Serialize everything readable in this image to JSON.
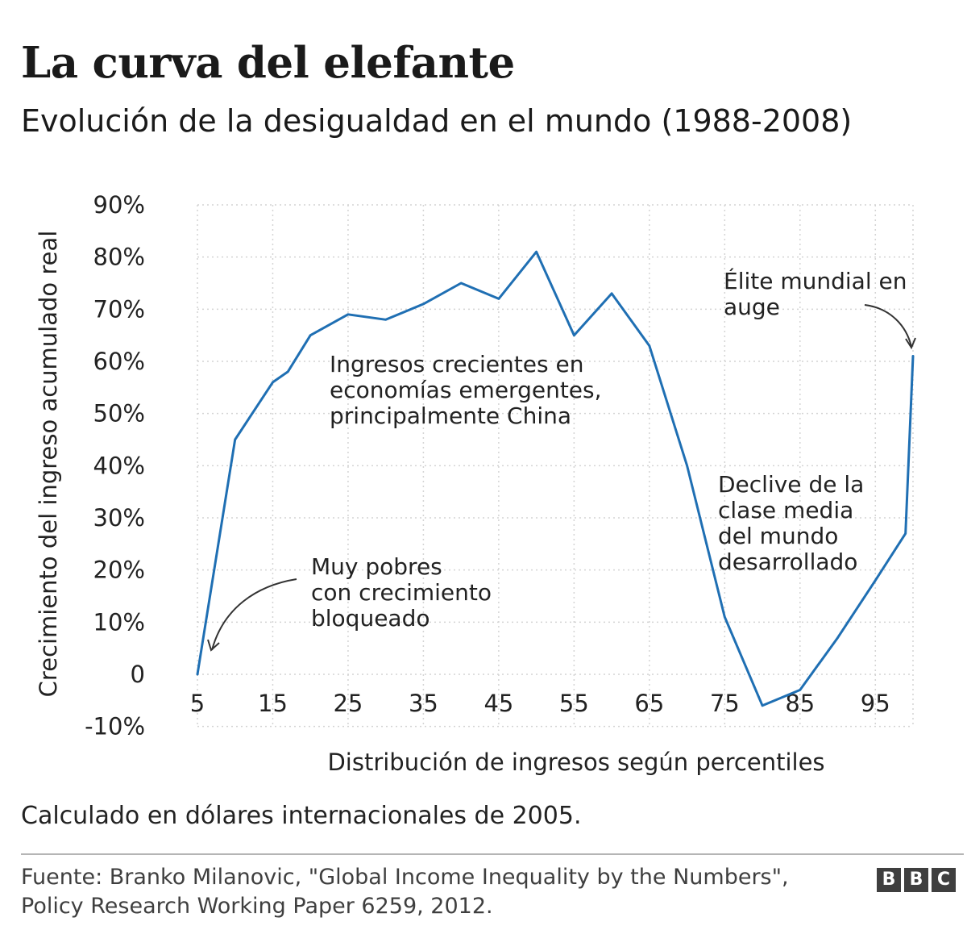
{
  "header": {
    "title": "La curva del elefante",
    "subtitle": "Evolución de la desigualdad en el mundo (1988-2008)"
  },
  "chart_data": {
    "type": "line",
    "xlabel": "Distribución de ingresos según percentiles",
    "ylabel": "Crecimiento del ingreso acumulado real",
    "xlim": [
      5,
      100
    ],
    "ylim": [
      -10,
      90
    ],
    "x_ticks": [
      5,
      15,
      25,
      35,
      45,
      55,
      65,
      75,
      85,
      95
    ],
    "x_tick_labels": [
      "5",
      "15",
      "25",
      "35",
      "45",
      "55",
      "65",
      "75",
      "85",
      "95"
    ],
    "y_ticks": [
      90,
      80,
      70,
      60,
      50,
      40,
      30,
      20,
      10,
      0,
      -10
    ],
    "y_tick_labels": [
      "90%",
      "80%",
      "70%",
      "60%",
      "50%",
      "40%",
      "30%",
      "20%",
      "10%",
      "0",
      "-10%"
    ],
    "grid": true,
    "series_color": "#1f6fb3",
    "series": [
      {
        "x": [
          5,
          10,
          15,
          17,
          20,
          25,
          30,
          35,
          40,
          45,
          50,
          55,
          60,
          65,
          70,
          75,
          80,
          85,
          90,
          95,
          99,
          100
        ],
        "values": [
          0,
          45,
          56,
          58,
          65,
          69,
          68,
          71,
          75,
          72,
          81,
          65,
          73,
          63,
          40,
          11,
          -6,
          -3,
          7,
          18,
          27,
          61
        ]
      }
    ],
    "annotations": [
      {
        "text": "Muy pobres con crecimiento bloqueado",
        "lines": [
          "Muy pobres",
          "con crecimiento",
          "bloqueado"
        ]
      },
      {
        "text": "Ingresos crecientes en economías emergentes, principalmente China",
        "lines": [
          "Ingresos crecientes en",
          "economías emergentes,",
          "principalmente China"
        ]
      },
      {
        "text": "Declive de la clase media del mundo desarrollado",
        "lines": [
          "Declive de la",
          "clase media",
          "del mundo",
          "desarrollado"
        ]
      },
      {
        "text": "Élite mundial en auge",
        "lines": [
          "Élite mundial en",
          "auge"
        ]
      }
    ]
  },
  "footer": {
    "note": "Calculado en dólares internacionales de 2005.",
    "source_line1": "Fuente: Branko Milanovic, \"Global Income Inequality by the Numbers\",",
    "source_line2": "Policy Research Working Paper 6259, 2012.",
    "logo": [
      "B",
      "B",
      "C"
    ]
  }
}
